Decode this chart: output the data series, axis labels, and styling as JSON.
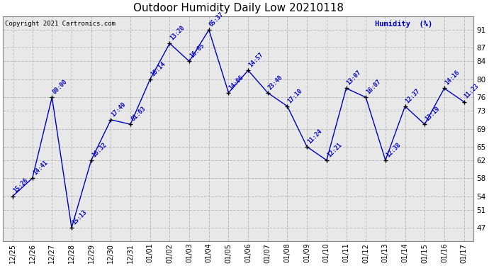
{
  "title": "Outdoor Humidity Daily Low 20210118",
  "copyright": "Copyright 2021 Cartronics.com",
  "ylabel": "Humidity  (%)",
  "background_color": "#ffffff",
  "plot_bg_color": "#e8e8e8",
  "grid_color": "#bbbbbb",
  "line_color": "#0000bb",
  "marker_color": "#000000",
  "text_color": "#0000bb",
  "title_color": "#000000",
  "ylim": [
    44,
    94
  ],
  "yticks": [
    47,
    51,
    54,
    58,
    62,
    65,
    69,
    73,
    76,
    80,
    84,
    87,
    91
  ],
  "x_labels": [
    "12/25",
    "12/26",
    "12/27",
    "12/28",
    "12/29",
    "12/30",
    "12/31",
    "01/01",
    "01/02",
    "01/03",
    "01/04",
    "01/05",
    "01/06",
    "01/07",
    "01/08",
    "01/09",
    "01/10",
    "01/11",
    "01/12",
    "01/13",
    "01/14",
    "01/15",
    "01/16",
    "01/17"
  ],
  "values": [
    54,
    58,
    76,
    47,
    62,
    71,
    70,
    80,
    88,
    84,
    91,
    77,
    82,
    77,
    74,
    65,
    62,
    78,
    76,
    62,
    74,
    70,
    78,
    75
  ],
  "point_labels": [
    "15:26",
    "14:41",
    "00:00",
    "15:13",
    "16:32",
    "17:49",
    "01:03",
    "10:14",
    "13:20",
    "16:05",
    "05:37",
    "14:06",
    "14:57",
    "23:40",
    "17:10",
    "11:24",
    "12:21",
    "13:07",
    "16:07",
    "12:38",
    "12:37",
    "13:19",
    "14:16",
    "11:23"
  ]
}
